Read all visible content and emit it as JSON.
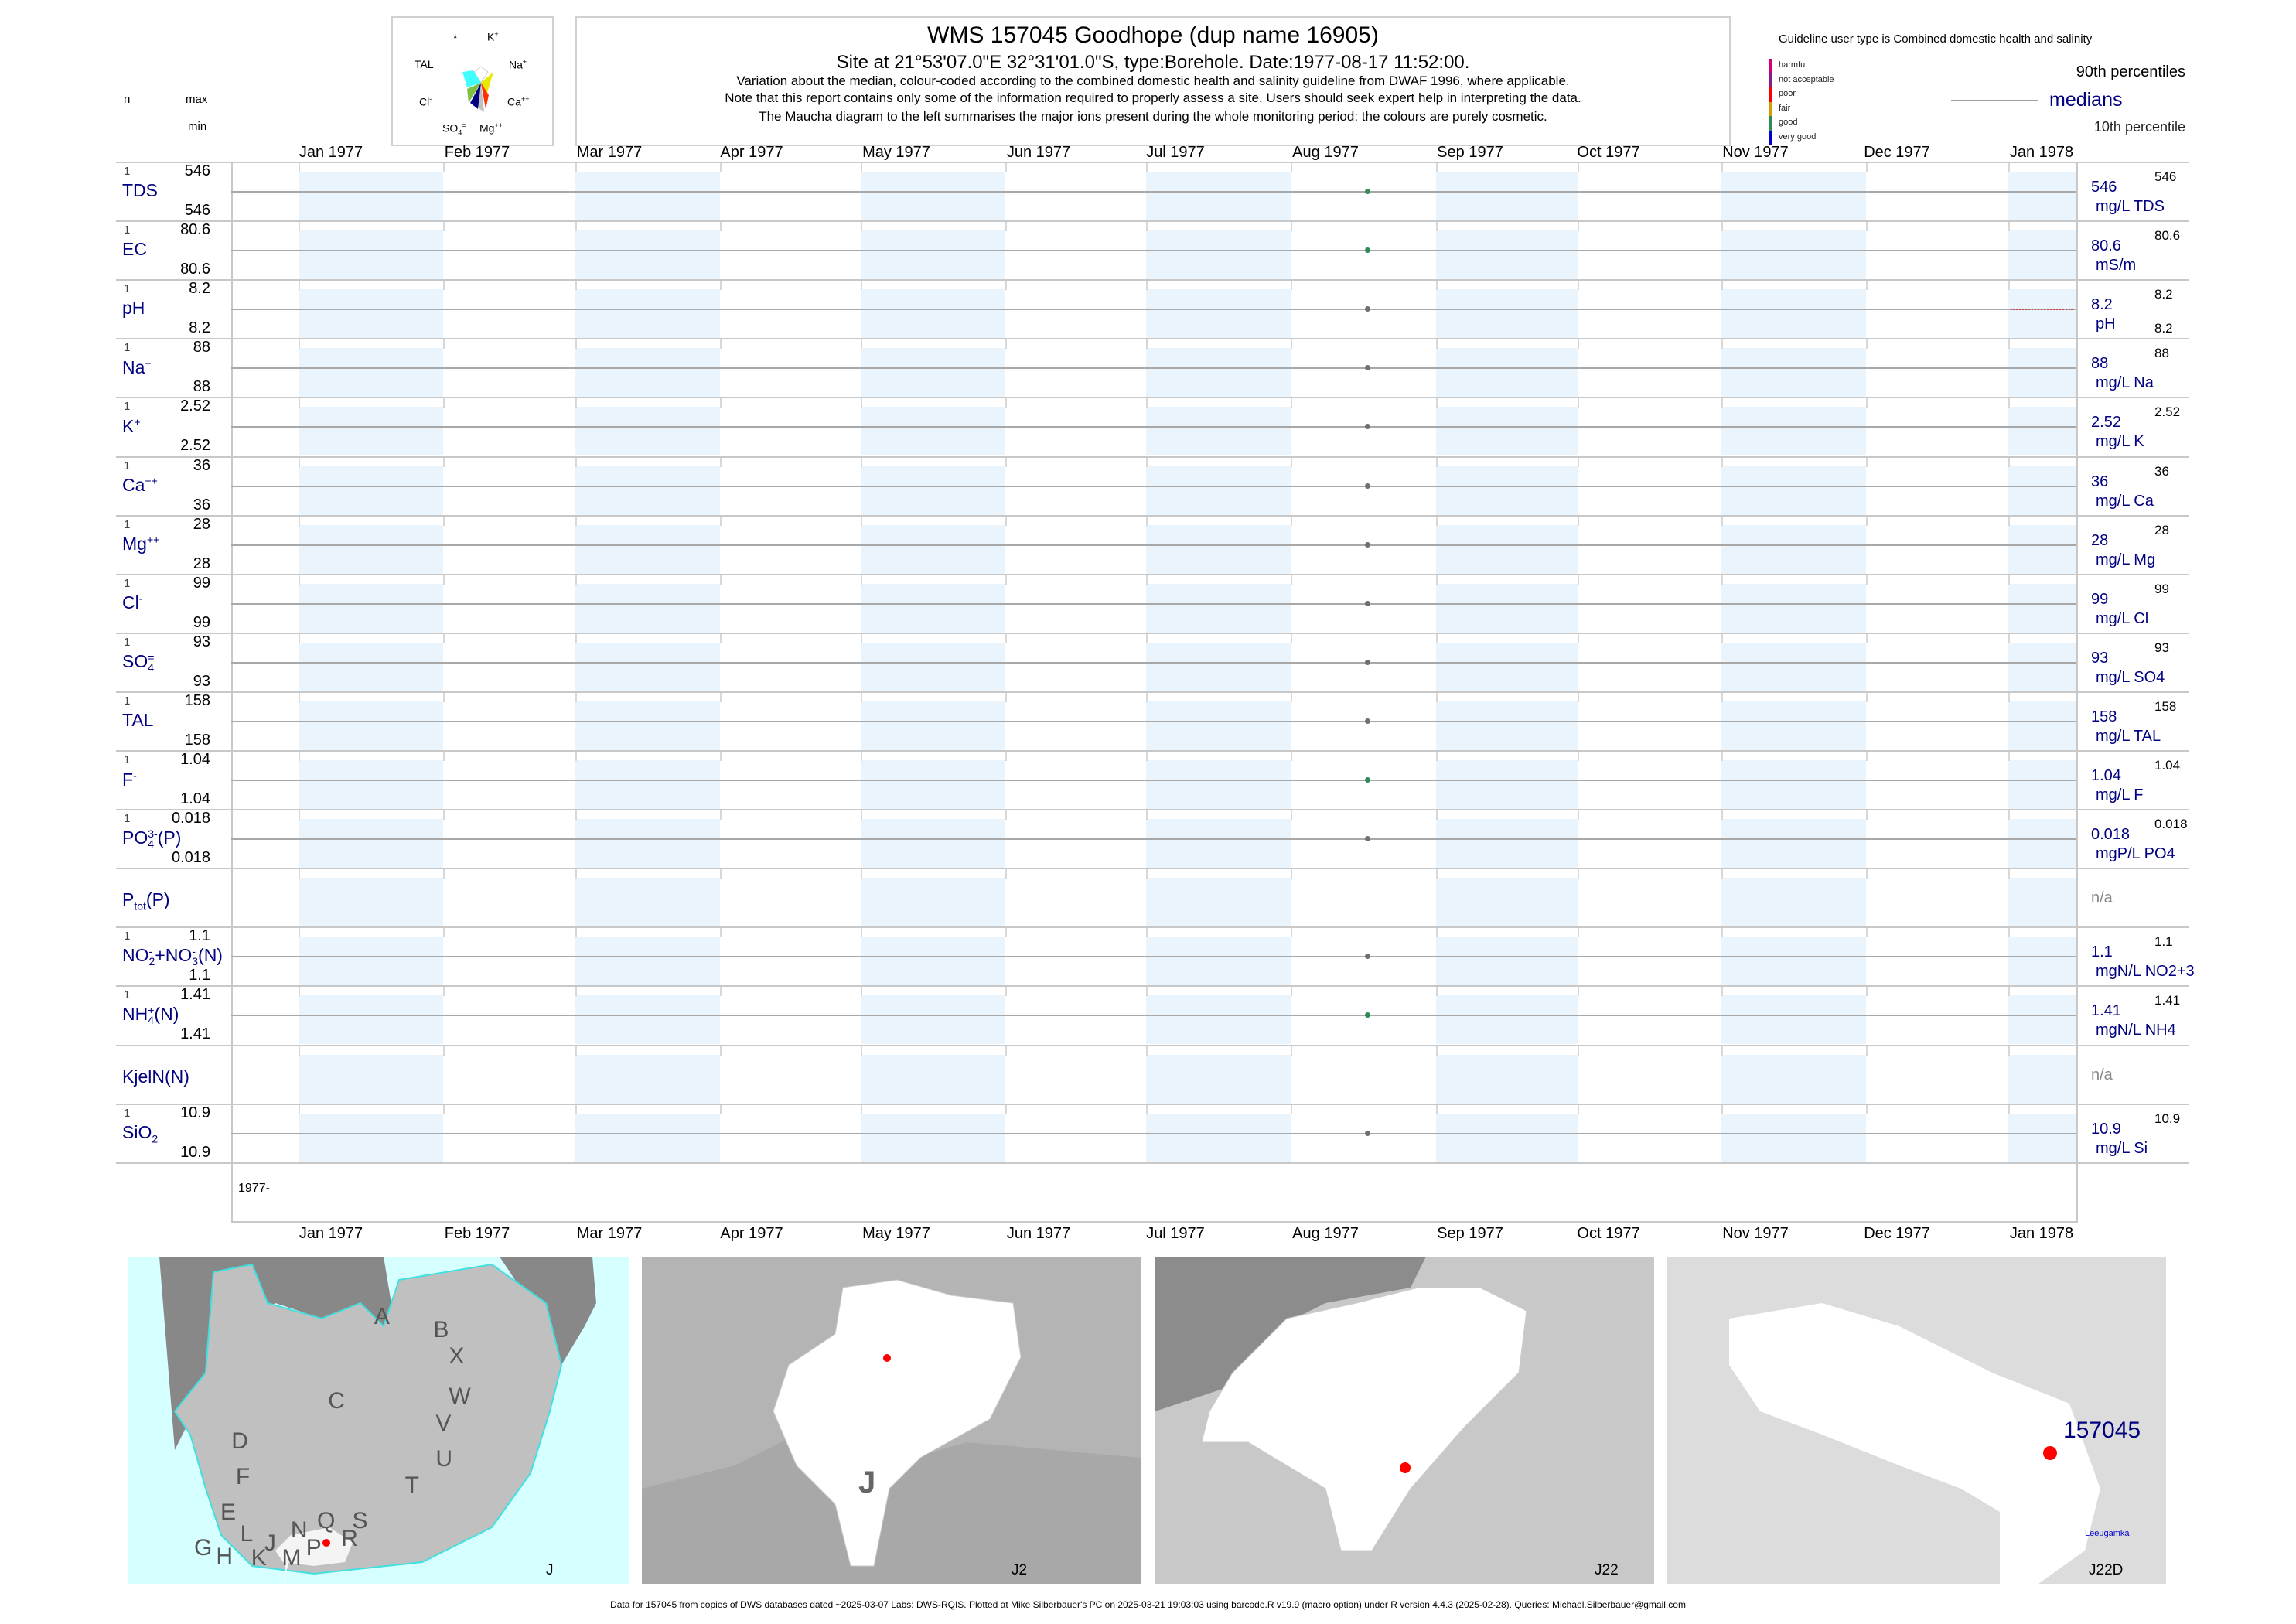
{
  "header": {
    "title": "WMS 157045  Goodhope (dup name 16905)",
    "site_line": "Site at 21°53'07.0\"E 32°31'01.0\"S, type:Borehole. Date:1977-08-17 11:52:00.",
    "note1": "Variation about the median,  colour-coded according to the combined domestic health and salinity guideline from DWAF 1996, where applicable.",
    "note2": "Note that this report contains only some of the information required to properly assess a site. Users should seek expert help in interpreting the data.",
    "note3": "The Maucha diagram to the left summarises the major ions present during the whole monitoring period: the colours are purely cosmetic.",
    "col_n": "n",
    "col_max": "max",
    "col_min": "min"
  },
  "maucha": {
    "labels": {
      "star": "*",
      "k": "K",
      "k_sup": "+",
      "tal": "TAL",
      "na": "Na",
      "na_sup": "+",
      "cl": "Cl",
      "cl_sup": "-",
      "ca": "Ca",
      "ca_sup": "++",
      "so4": "SO",
      "so4_sub": "4",
      "so4_sup": "=",
      "mg": "Mg",
      "mg_sup": "++"
    },
    "colors": [
      "#ffffff",
      "#e8e800",
      "#ff3000",
      "#c0c0c0",
      "#000080",
      "#80c040",
      "#40ffff"
    ]
  },
  "legend": {
    "guideline": "Guideline user type is Combined domestic health and salinity",
    "classes": [
      {
        "label": "harmful",
        "color": "#d0007a"
      },
      {
        "label": "not acceptable",
        "color": "#8a1a8a"
      },
      {
        "label": "poor",
        "color": "#ff0000"
      },
      {
        "label": "fair",
        "color": "#d0a000"
      },
      {
        "label": "good",
        "color": "#2e8b57"
      },
      {
        "label": "very good",
        "color": "#0000d0"
      }
    ],
    "p90": "90th percentiles",
    "medians": "medians",
    "p10": "10th percentile"
  },
  "axis": {
    "months": [
      "Jan 1977",
      "Feb 1977",
      "Mar 1977",
      "Apr 1977",
      "May 1977",
      "Jun 1977",
      "Jul 1977",
      "Aug 1977",
      "Sep 1977",
      "Oct 1977",
      "Nov 1977",
      "Dec 1977",
      "Jan 1978"
    ],
    "year_label": "1977-",
    "sample_date": "1977-08-17"
  },
  "rows": [
    {
      "label": [
        {
          "t": "TDS"
        }
      ],
      "n": "1",
      "max": "546",
      "min": "546",
      "value": "546",
      "unit": "mg/L TDS",
      "p90": "546",
      "point": "#3a8a5a"
    },
    {
      "label": [
        {
          "t": "EC"
        }
      ],
      "n": "1",
      "max": "80.6",
      "min": "80.6",
      "value": "80.6",
      "unit": "mS/m",
      "p90": "80.6",
      "point": "#2e8b57"
    },
    {
      "label": [
        {
          "t": "pH"
        }
      ],
      "n": "1",
      "max": "8.2",
      "min": "8.2",
      "value": "8.2",
      "unit": "pH",
      "p90": "8.2",
      "p10": "8.2",
      "point": "#707070"
    },
    {
      "label": [
        {
          "t": "Na",
          "sup": "+"
        }
      ],
      "n": "1",
      "max": "88",
      "min": "88",
      "value": "88",
      "unit": "mg/L Na",
      "p90": "88",
      "point": "#707070"
    },
    {
      "label": [
        {
          "t": "K",
          "sup": "+"
        }
      ],
      "n": "1",
      "max": "2.52",
      "min": "2.52",
      "value": "2.52",
      "unit": "mg/L K",
      "p90": "2.52",
      "point": "#707070"
    },
    {
      "label": [
        {
          "t": "Ca",
          "sup": "++"
        }
      ],
      "n": "1",
      "max": "36",
      "min": "36",
      "value": "36",
      "unit": "mg/L Ca",
      "p90": "36",
      "point": "#707070"
    },
    {
      "label": [
        {
          "t": "Mg",
          "sup": "++"
        }
      ],
      "n": "1",
      "max": "28",
      "min": "28",
      "value": "28",
      "unit": "mg/L Mg",
      "p90": "28",
      "point": "#707070"
    },
    {
      "label": [
        {
          "t": "Cl",
          "sup": "-"
        }
      ],
      "n": "1",
      "max": "99",
      "min": "99",
      "value": "99",
      "unit": "mg/L Cl",
      "p90": "99",
      "point": "#707070"
    },
    {
      "label": [
        {
          "t": "SO",
          "sub": "4",
          "sup": "="
        }
      ],
      "n": "1",
      "max": "93",
      "min": "93",
      "value": "93",
      "unit": "mg/L SO4",
      "p90": "93",
      "point": "#707070"
    },
    {
      "label": [
        {
          "t": "TAL"
        }
      ],
      "n": "1",
      "max": "158",
      "min": "158",
      "value": "158",
      "unit": "mg/L TAL",
      "p90": "158",
      "point": "#707070"
    },
    {
      "label": [
        {
          "t": "F",
          "sup": "-"
        }
      ],
      "n": "1",
      "max": "1.04",
      "min": "1.04",
      "value": "1.04",
      "unit": "mg/L F",
      "p90": "1.04",
      "point": "#2e8b57"
    },
    {
      "label": [
        {
          "t": "PO",
          "sub": "4",
          "sup": "3-"
        },
        {
          "t": "(P)"
        }
      ],
      "n": "1",
      "max": "0.018",
      "min": "0.018",
      "value": "0.018",
      "unit": "mgP/L PO4",
      "p90": "0.018",
      "point": "#707070"
    },
    {
      "label": [
        {
          "t": "P",
          "sub": "tot"
        },
        {
          "t": "(P)"
        }
      ],
      "na": "n/a"
    },
    {
      "label": [
        {
          "t": "NO",
          "sub": "2",
          "sup": "-"
        },
        {
          "t": "+NO",
          "sub": "3",
          "sup": "-"
        },
        {
          "t": "(N)"
        }
      ],
      "n": "1",
      "max": "1.1",
      "min": "1.1",
      "value": "1.1",
      "unit": "mgN/L NO2+3",
      "p90": "1.1",
      "point": "#707070"
    },
    {
      "label": [
        {
          "t": "NH",
          "sub": "4",
          "sup": "+"
        },
        {
          "t": "(N)"
        }
      ],
      "n": "1",
      "max": "1.41",
      "min": "1.41",
      "value": "1.41",
      "unit": "mgN/L NH4",
      "p90": "1.41",
      "point": "#2e8b57"
    },
    {
      "label": [
        {
          "t": "KjelN(N)"
        }
      ],
      "na": "n/a"
    },
    {
      "label": [
        {
          "t": "SiO",
          "sub": "2"
        }
      ],
      "n": "1",
      "max": "10.9",
      "min": "10.9",
      "value": "10.9",
      "unit": "mg/L Si",
      "p90": "10.9",
      "point": "#707070"
    }
  ],
  "maps": {
    "panel1_label": "J",
    "panel1_regions": [
      "A",
      "B",
      "X",
      "W",
      "C",
      "V",
      "U",
      "D",
      "F",
      "T",
      "E",
      "S",
      "Q",
      "N",
      "L",
      "R",
      "G",
      "J",
      "P",
      "H",
      "K",
      "M"
    ],
    "panel2_label": "J2",
    "panel2_region": "J",
    "panel3_label": "J22",
    "panel4_label": "J22D",
    "site_id": "157045",
    "town": "Leeugamka",
    "site_color": "#ff0000"
  },
  "footer": "Data for 157045 from copies of DWS databases dated ~2025-03-07 Labs: DWS-RQIS. Plotted at Mike Silberbauer's PC on 2025-03-21 19:03:03 using barcode.R v19.9 (macro option) under R version 4.4.3 (2025-02-28). Queries: Michael.Silberbauer@gmail.com"
}
